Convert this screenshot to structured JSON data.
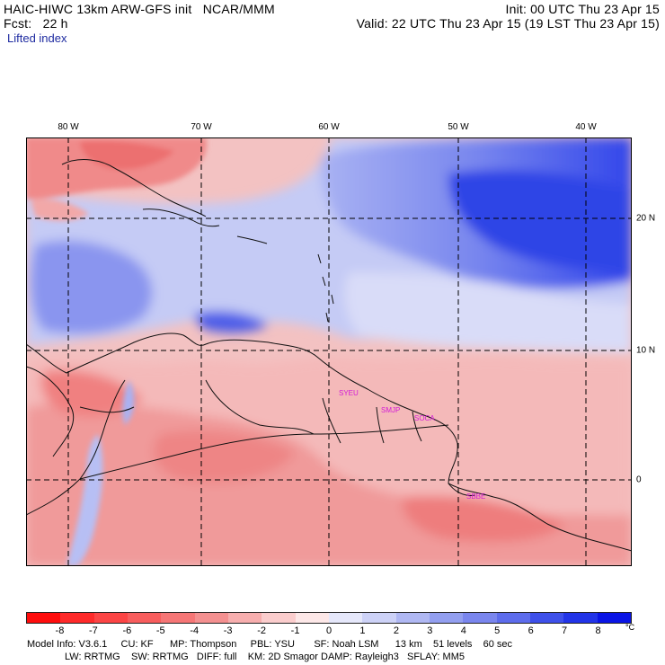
{
  "header": {
    "model_title": "HAIC-HIWC 13km ARW-GFS init   NCAR/MMM",
    "init_time": "Init: 00 UTC Thu 23 Apr 15",
    "forecast": "Fcst:   22 h",
    "valid_time": "Valid: 22 UTC Thu 23 Apr 15 (19 LST Thu 23 Apr 15)",
    "field_name": "Lifted index"
  },
  "map": {
    "longitude_labels": [
      "80 W",
      "70 W",
      "60 W",
      "50 W",
      "40 W"
    ],
    "latitude_labels": [
      "20 N",
      "10 N",
      "0"
    ],
    "stations": [
      "SYEU",
      "SMJP",
      "SOCA",
      "SBBE"
    ]
  },
  "colorbar": {
    "unit": "°C",
    "tick_labels": [
      "-8",
      "-7",
      "-6",
      "-5",
      "-4",
      "-3",
      "-2",
      "-1",
      "0",
      "1",
      "2",
      "3",
      "4",
      "5",
      "6",
      "7",
      "8"
    ],
    "colors": [
      "#ff0d0d",
      "#ff2a2a",
      "#fc4545",
      "#f85d5d",
      "#f67676",
      "#f49090",
      "#f7aeae",
      "#fbcdcd",
      "#fde8e8",
      "#e6e8fb",
      "#cdd2f7",
      "#b0b8f3",
      "#939ff0",
      "#7a86ee",
      "#5d6cec",
      "#3e50ea",
      "#2234e8",
      "#0a14e5"
    ]
  },
  "model_info": {
    "line1": "Model Info: V3.6.1     CU: KF      MP: Thompson     PBL: YSU       SF: Noah LSM      13 km    51 levels    60 sec",
    "line2": "LW: RRTMG    SW: RRTMG   DIFF: full    KM: 2D Smagor DAMP: Rayleigh3   SFLAY: MM5"
  }
}
